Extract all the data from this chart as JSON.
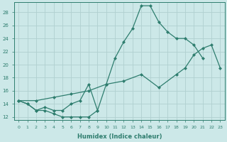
{
  "xlabel": "Humidex (Indice chaleur)",
  "xlim": [
    -0.5,
    23.5
  ],
  "ylim": [
    11.5,
    29.5
  ],
  "xticks": [
    0,
    1,
    2,
    3,
    4,
    5,
    6,
    7,
    8,
    9,
    10,
    11,
    12,
    13,
    14,
    15,
    16,
    17,
    18,
    19,
    20,
    21,
    22,
    23
  ],
  "yticks": [
    12,
    14,
    16,
    18,
    20,
    22,
    24,
    26,
    28
  ],
  "bg_color": "#cce8e8",
  "line_color": "#2e7d6e",
  "grid_color": "#b0d0d0",
  "line1_x": [
    0,
    1,
    2,
    3,
    4,
    5,
    6,
    7,
    8,
    9
  ],
  "line1_y": [
    14.5,
    14.0,
    13.0,
    13.0,
    12.5,
    12.0,
    12.0,
    12.0,
    12.0,
    13.0
  ],
  "line2_x": [
    0,
    1,
    2,
    3,
    4,
    5,
    6,
    7,
    8,
    9,
    10,
    11,
    12,
    13,
    14,
    15,
    16,
    17,
    18,
    19,
    20,
    21
  ],
  "line2_y": [
    14.5,
    14.0,
    13.0,
    13.5,
    13.0,
    13.0,
    14.0,
    14.5,
    17.0,
    13.0,
    17.0,
    21.0,
    23.5,
    25.5,
    29.0,
    29.0,
    26.5,
    25.0,
    24.0,
    24.0,
    23.0,
    21.0
  ],
  "line3_x": [
    0,
    2,
    4,
    6,
    8,
    10,
    12,
    14,
    16,
    18,
    19,
    20,
    21,
    22,
    23
  ],
  "line3_y": [
    14.5,
    14.5,
    15.0,
    15.5,
    16.0,
    17.0,
    17.5,
    18.5,
    16.5,
    18.5,
    19.5,
    21.5,
    22.5,
    23.0,
    19.5
  ]
}
